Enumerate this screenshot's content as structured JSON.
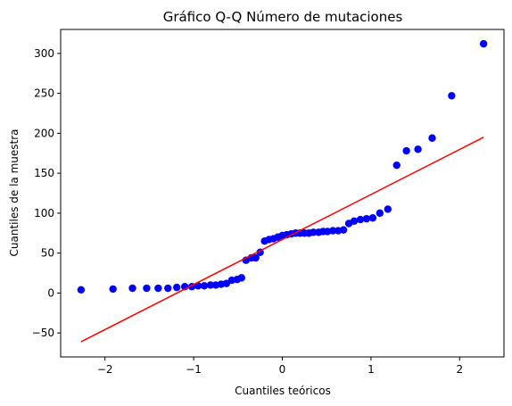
{
  "chart_data": {
    "type": "scatter",
    "title": "Gráfico Q-Q Número de mutaciones",
    "xlabel": "Cuantiles teóricos",
    "ylabel": "Cuantiles de la muestra",
    "xlim": [
      -2.5,
      2.5
    ],
    "ylim": [
      -80,
      330
    ],
    "xticks": [
      -2,
      -1,
      0,
      1,
      2
    ],
    "xtick_labels": [
      "−2",
      "−1",
      "0",
      "1",
      "2"
    ],
    "yticks": [
      -50,
      0,
      50,
      100,
      150,
      200,
      250,
      300
    ],
    "ytick_labels": [
      "−50",
      "0",
      "50",
      "100",
      "150",
      "200",
      "250",
      "300"
    ],
    "grid": false,
    "colors": {
      "points": "#0000ff",
      "line": "#ff0000"
    },
    "series": [
      {
        "kind": "points",
        "x": [
          -2.27,
          -1.91,
          -1.69,
          -1.53,
          -1.4,
          -1.29,
          -1.19,
          -1.1,
          -1.02,
          -0.95,
          -0.88,
          -0.81,
          -0.75,
          -0.69,
          -0.63,
          -0.57,
          -0.51,
          -0.46,
          -0.41,
          -0.35,
          -0.3,
          -0.25,
          -0.2,
          -0.15,
          -0.1,
          -0.05,
          0.0,
          0.05,
          0.1,
          0.15,
          0.2,
          0.25,
          0.3,
          0.35,
          0.41,
          0.46,
          0.51,
          0.57,
          0.63,
          0.69,
          0.75,
          0.81,
          0.88,
          0.95,
          1.02,
          1.1,
          1.19,
          1.29,
          1.4,
          1.53,
          1.69,
          1.91,
          2.27
        ],
        "y": [
          4,
          5,
          6,
          6,
          6,
          6,
          7,
          8,
          8,
          9,
          9,
          10,
          10,
          11,
          12,
          16,
          17,
          19,
          41,
          44,
          44,
          51,
          65,
          67,
          68,
          70,
          72,
          73,
          74,
          75,
          75,
          75,
          75,
          76,
          76,
          77,
          77,
          78,
          78,
          79,
          87,
          90,
          92,
          93,
          94,
          100,
          105,
          160,
          178,
          180,
          194,
          247,
          312
        ]
      },
      {
        "kind": "fit-line",
        "x": [
          -2.27,
          2.27
        ],
        "y": [
          -61,
          195
        ]
      }
    ]
  }
}
